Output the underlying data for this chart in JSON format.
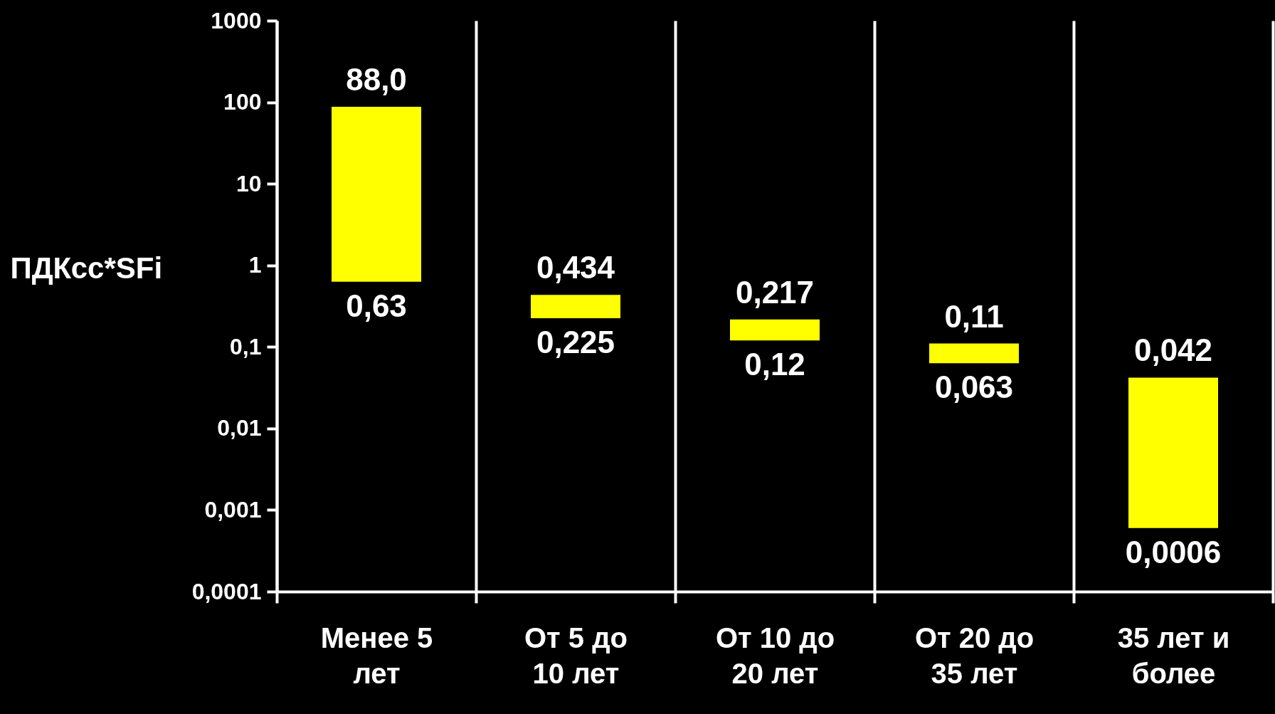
{
  "chart_data": {
    "type": "bar",
    "ylabel": "ПДКсс*SFi",
    "categories": [
      "Менее 5 лет",
      "От 5 до 10 лет",
      "От 10 до 20 лет",
      "От 20 до 35 лет",
      "35 лет и более"
    ],
    "base": [
      0.63,
      0.225,
      0.12,
      0.063,
      0.0006
    ],
    "values": [
      87.37,
      0.209,
      0.097,
      0.047,
      0.0414
    ],
    "color": "#ffff00",
    "log": true,
    "ylim": [
      0.0001,
      1000
    ],
    "yticks": [
      {
        "value": 0.0001,
        "label": "0,0001"
      },
      {
        "value": 0.001,
        "label": "0,001"
      },
      {
        "value": 0.01,
        "label": "0,01"
      },
      {
        "value": 0.1,
        "label": "0,1"
      },
      1,
      10,
      100,
      1000
    ],
    "grid": "x",
    "annotations": [
      {
        "text": "88,0",
        "x": "Менее 5 лет",
        "y": 88
      },
      {
        "text": "0,63",
        "x": "Менее 5 лет",
        "y": 0.63
      },
      {
        "text": "0,434",
        "x": "От 5 до 10 лет",
        "y": 0.434
      },
      {
        "text": "0,225",
        "x": "От 5 до 10 лет",
        "y": 0.225
      },
      {
        "text": "0,217",
        "x": "От 10 до 20 лет",
        "y": 0.217
      },
      {
        "text": "0,12",
        "x": "От 10 до 20 лет",
        "y": 0.12
      },
      {
        "text": "0,11",
        "x": "От 20 до 35 лет",
        "y": 0.11
      },
      {
        "text": "0,063",
        "x": "От 20 до 35 лет",
        "y": 0.063
      },
      {
        "text": "0,042",
        "x": "35 лет и более",
        "y": 0.042
      },
      {
        "text": "0,0006",
        "x": "35 лет и более",
        "y": 0.0006
      }
    ]
  }
}
